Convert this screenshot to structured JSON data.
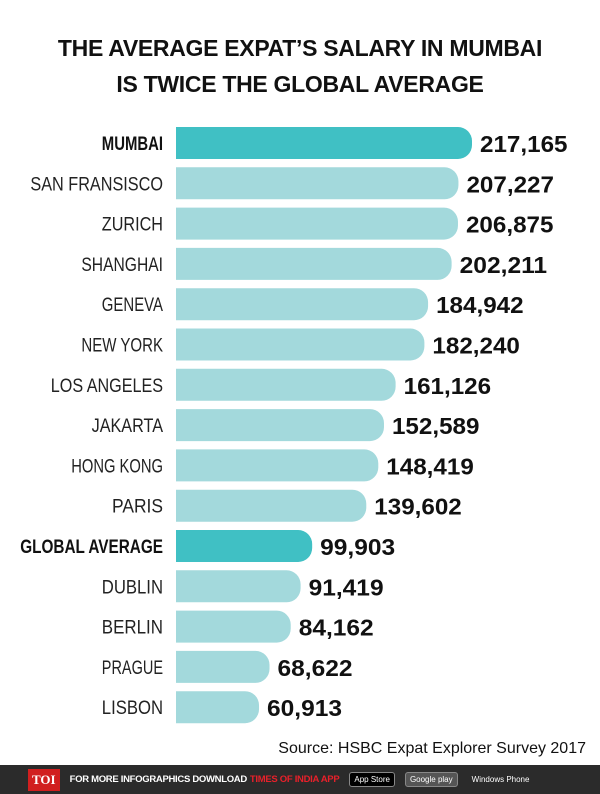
{
  "title_lines": [
    "THE AVERAGE EXPAT’S SALARY IN MUMBAI",
    "IS TWICE THE GLOBAL AVERAGE"
  ],
  "chart_data": {
    "type": "bar",
    "orientation": "horizontal",
    "title": "THE AVERAGE EXPAT’S SALARY IN MUMBAI IS TWICE THE GLOBAL AVERAGE",
    "categories": [
      "MUMBAI",
      "SAN FRANSISCO",
      "ZURICH",
      "SHANGHAI",
      "GENEVA",
      "NEW YORK",
      "LOS ANGELES",
      "JAKARTA",
      "HONG KONG",
      "PARIS",
      "GLOBAL AVERAGE",
      "DUBLIN",
      "BERLIN",
      "PRAGUE",
      "LISBON"
    ],
    "values": [
      217165,
      207227,
      206875,
      202211,
      184942,
      182240,
      161126,
      152589,
      148419,
      139602,
      99903,
      91419,
      84162,
      68622,
      60913
    ],
    "value_labels": [
      "217,165",
      "207,227",
      "206,875",
      "202,211",
      "184,942",
      "182,240",
      "161,126",
      "152,589",
      "148,419",
      "139,602",
      "99,903",
      "91,419",
      "84,162",
      "68,622",
      "60,913"
    ],
    "highlighted": [
      "MUMBAI",
      "GLOBAL AVERAGE"
    ],
    "colors": {
      "highlight": "#40c0c4",
      "default": "#a3d9dc"
    },
    "xlim": [
      0,
      217165
    ],
    "grid": false,
    "legend": "none"
  },
  "source": "Source: HSBC Expat Explorer Survey 2017",
  "footer": {
    "logo": "TOI",
    "text": "FOR MORE  INFOGRAPHICS DOWNLOAD",
    "app_name": "TIMES OF INDIA  APP",
    "badges": [
      "App Store",
      "Google play",
      "Windows Phone"
    ]
  }
}
